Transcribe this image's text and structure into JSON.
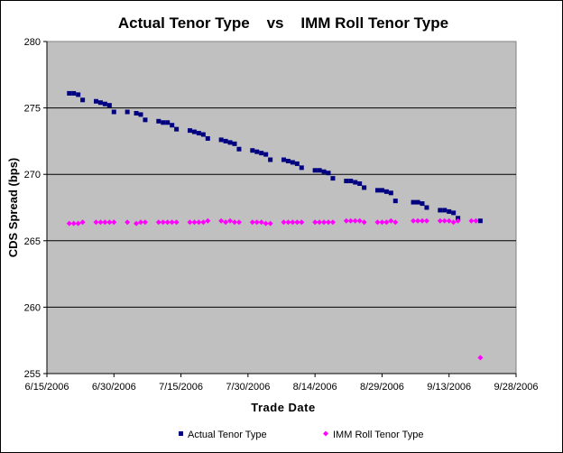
{
  "chart_data": {
    "type": "scatter",
    "title": "Actual Tenor Type    vs    IMM Roll Tenor Type",
    "xlabel": "Trade Date",
    "ylabel": "CDS Spread (bps)",
    "x_ticks": [
      "6/15/2006",
      "6/30/2006",
      "7/15/2006",
      "7/30/2006",
      "8/14/2006",
      "8/29/2006",
      "9/13/2006",
      "9/28/2006"
    ],
    "x_range": [
      "2006-06-15",
      "2006-09-28"
    ],
    "ylim": [
      255,
      280
    ],
    "y_ticks": [
      255,
      260,
      265,
      270,
      275,
      280
    ],
    "grid": "horizontal",
    "plot_background": "#c0c0c0",
    "legend_position": "bottom",
    "series": [
      {
        "name": "Actual Tenor Type",
        "color": "#000080",
        "marker": "square",
        "points": [
          [
            "2006-06-20",
            276.1
          ],
          [
            "2006-06-21",
            276.1
          ],
          [
            "2006-06-22",
            276.0
          ],
          [
            "2006-06-23",
            275.6
          ],
          [
            "2006-06-26",
            275.5
          ],
          [
            "2006-06-27",
            275.4
          ],
          [
            "2006-06-28",
            275.3
          ],
          [
            "2006-06-29",
            275.2
          ],
          [
            "2006-06-30",
            274.7
          ],
          [
            "2006-07-03",
            274.7
          ],
          [
            "2006-07-05",
            274.6
          ],
          [
            "2006-07-06",
            274.5
          ],
          [
            "2006-07-07",
            274.1
          ],
          [
            "2006-07-10",
            274.0
          ],
          [
            "2006-07-11",
            273.9
          ],
          [
            "2006-07-12",
            273.9
          ],
          [
            "2006-07-13",
            273.7
          ],
          [
            "2006-07-14",
            273.4
          ],
          [
            "2006-07-17",
            273.3
          ],
          [
            "2006-07-18",
            273.2
          ],
          [
            "2006-07-19",
            273.1
          ],
          [
            "2006-07-20",
            273.0
          ],
          [
            "2006-07-21",
            272.7
          ],
          [
            "2006-07-24",
            272.6
          ],
          [
            "2006-07-25",
            272.5
          ],
          [
            "2006-07-26",
            272.4
          ],
          [
            "2006-07-27",
            272.3
          ],
          [
            "2006-07-28",
            271.9
          ],
          [
            "2006-07-31",
            271.8
          ],
          [
            "2006-08-01",
            271.7
          ],
          [
            "2006-08-02",
            271.6
          ],
          [
            "2006-08-03",
            271.5
          ],
          [
            "2006-08-04",
            271.1
          ],
          [
            "2006-08-07",
            271.1
          ],
          [
            "2006-08-08",
            271.0
          ],
          [
            "2006-08-09",
            270.9
          ],
          [
            "2006-08-10",
            270.8
          ],
          [
            "2006-08-11",
            270.5
          ],
          [
            "2006-08-14",
            270.3
          ],
          [
            "2006-08-15",
            270.3
          ],
          [
            "2006-08-16",
            270.2
          ],
          [
            "2006-08-17",
            270.1
          ],
          [
            "2006-08-18",
            269.7
          ],
          [
            "2006-08-21",
            269.5
          ],
          [
            "2006-08-22",
            269.5
          ],
          [
            "2006-08-23",
            269.4
          ],
          [
            "2006-08-24",
            269.3
          ],
          [
            "2006-08-25",
            269.0
          ],
          [
            "2006-08-28",
            268.8
          ],
          [
            "2006-08-29",
            268.8
          ],
          [
            "2006-08-30",
            268.7
          ],
          [
            "2006-08-31",
            268.6
          ],
          [
            "2006-09-01",
            268.0
          ],
          [
            "2006-09-05",
            267.9
          ],
          [
            "2006-09-06",
            267.9
          ],
          [
            "2006-09-07",
            267.8
          ],
          [
            "2006-09-08",
            267.5
          ],
          [
            "2006-09-11",
            267.3
          ],
          [
            "2006-09-12",
            267.3
          ],
          [
            "2006-09-13",
            267.2
          ],
          [
            "2006-09-14",
            267.1
          ],
          [
            "2006-09-15",
            266.7
          ],
          [
            "2006-09-20",
            266.5
          ]
        ]
      },
      {
        "name": "IMM Roll Tenor Type",
        "color": "#ff00ff",
        "marker": "diamond",
        "points": [
          [
            "2006-06-20",
            266.3
          ],
          [
            "2006-06-21",
            266.3
          ],
          [
            "2006-06-22",
            266.3
          ],
          [
            "2006-06-23",
            266.4
          ],
          [
            "2006-06-26",
            266.4
          ],
          [
            "2006-06-27",
            266.4
          ],
          [
            "2006-06-28",
            266.4
          ],
          [
            "2006-06-29",
            266.4
          ],
          [
            "2006-06-30",
            266.4
          ],
          [
            "2006-07-03",
            266.4
          ],
          [
            "2006-07-05",
            266.3
          ],
          [
            "2006-07-06",
            266.4
          ],
          [
            "2006-07-07",
            266.4
          ],
          [
            "2006-07-10",
            266.4
          ],
          [
            "2006-07-11",
            266.4
          ],
          [
            "2006-07-12",
            266.4
          ],
          [
            "2006-07-13",
            266.4
          ],
          [
            "2006-07-14",
            266.4
          ],
          [
            "2006-07-17",
            266.4
          ],
          [
            "2006-07-18",
            266.4
          ],
          [
            "2006-07-19",
            266.4
          ],
          [
            "2006-07-20",
            266.4
          ],
          [
            "2006-07-21",
            266.5
          ],
          [
            "2006-07-24",
            266.5
          ],
          [
            "2006-07-25",
            266.4
          ],
          [
            "2006-07-26",
            266.5
          ],
          [
            "2006-07-27",
            266.4
          ],
          [
            "2006-07-28",
            266.4
          ],
          [
            "2006-07-31",
            266.4
          ],
          [
            "2006-08-01",
            266.4
          ],
          [
            "2006-08-02",
            266.4
          ],
          [
            "2006-08-03",
            266.3
          ],
          [
            "2006-08-04",
            266.3
          ],
          [
            "2006-08-07",
            266.4
          ],
          [
            "2006-08-08",
            266.4
          ],
          [
            "2006-08-09",
            266.4
          ],
          [
            "2006-08-10",
            266.4
          ],
          [
            "2006-08-11",
            266.4
          ],
          [
            "2006-08-14",
            266.4
          ],
          [
            "2006-08-15",
            266.4
          ],
          [
            "2006-08-16",
            266.4
          ],
          [
            "2006-08-17",
            266.4
          ],
          [
            "2006-08-18",
            266.4
          ],
          [
            "2006-08-21",
            266.5
          ],
          [
            "2006-08-22",
            266.5
          ],
          [
            "2006-08-23",
            266.5
          ],
          [
            "2006-08-24",
            266.5
          ],
          [
            "2006-08-25",
            266.4
          ],
          [
            "2006-08-28",
            266.4
          ],
          [
            "2006-08-29",
            266.4
          ],
          [
            "2006-08-30",
            266.4
          ],
          [
            "2006-08-31",
            266.5
          ],
          [
            "2006-09-01",
            266.4
          ],
          [
            "2006-09-05",
            266.5
          ],
          [
            "2006-09-06",
            266.5
          ],
          [
            "2006-09-07",
            266.5
          ],
          [
            "2006-09-08",
            266.5
          ],
          [
            "2006-09-11",
            266.5
          ],
          [
            "2006-09-12",
            266.5
          ],
          [
            "2006-09-13",
            266.5
          ],
          [
            "2006-09-14",
            266.4
          ],
          [
            "2006-09-15",
            266.5
          ],
          [
            "2006-09-18",
            266.5
          ],
          [
            "2006-09-19",
            266.5
          ],
          [
            "2006-09-20",
            256.2
          ]
        ]
      }
    ]
  }
}
